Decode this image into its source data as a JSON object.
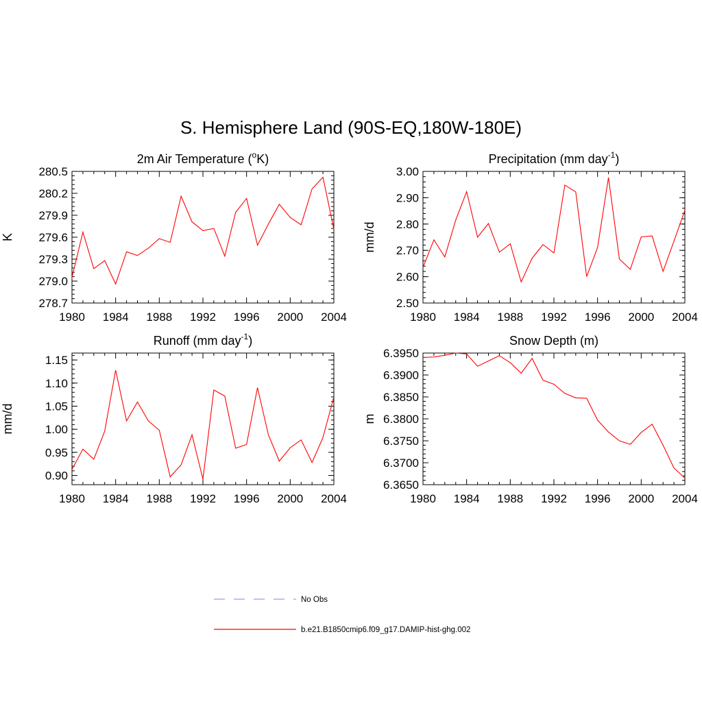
{
  "figure": {
    "title": "S. Hemisphere Land (90S-EQ,180W-180E)"
  },
  "legend": {
    "items": [
      {
        "label": "No Obs",
        "color": "#9999ff",
        "style": "dashed"
      },
      {
        "label": "b.e21.B1850cmip6.f09_g17.DAMIP-hist-ghg.002",
        "color": "#ff0000",
        "style": "solid"
      }
    ]
  },
  "chart_data": [
    {
      "type": "line",
      "title": "2m Air Temperature (°K)",
      "title_main": "2m Air Temperature (",
      "title_sup": "o",
      "title_tail": "K)",
      "ylabel": "K",
      "xlim": [
        1980,
        2004
      ],
      "ylim": [
        278.7,
        280.5
      ],
      "xticks": [
        "1980",
        "1984",
        "1988",
        "1992",
        "1996",
        "2000",
        "2004"
      ],
      "yticks": [
        "278.7",
        "279.0",
        "279.3",
        "279.6",
        "279.9",
        "280.2",
        "280.5"
      ],
      "series": [
        {
          "color": "#ff0000",
          "x": [
            1980,
            1981,
            1982,
            1983,
            1984,
            1985,
            1986,
            1987,
            1988,
            1989,
            1990,
            1991,
            1992,
            1993,
            1994,
            1995,
            1996,
            1997,
            1998,
            1999,
            2000,
            2001,
            2002,
            2003,
            2004
          ],
          "values": [
            279.05,
            279.67,
            279.17,
            279.28,
            278.96,
            279.4,
            279.35,
            279.45,
            279.58,
            279.53,
            280.16,
            279.81,
            279.69,
            279.72,
            279.34,
            279.94,
            280.13,
            279.49,
            279.78,
            280.05,
            279.87,
            279.77,
            280.26,
            280.42,
            279.71
          ]
        }
      ]
    },
    {
      "type": "line",
      "title": "Precipitation (mm day-1)",
      "title_main": "Precipitation (mm day",
      "title_sup": "-1",
      "title_tail": ")",
      "ylabel": "mm/d",
      "xlim": [
        1980,
        2004
      ],
      "ylim": [
        2.5,
        3.0
      ],
      "xticks": [
        "1980",
        "1984",
        "1988",
        "1992",
        "1996",
        "2000",
        "2004"
      ],
      "yticks": [
        "2.50",
        "2.60",
        "2.70",
        "2.80",
        "2.90",
        "3.00"
      ],
      "series": [
        {
          "color": "#ff0000",
          "x": [
            1980,
            1981,
            1982,
            1983,
            1984,
            1985,
            1986,
            1987,
            1988,
            1989,
            1990,
            1991,
            1992,
            1993,
            1994,
            1995,
            1996,
            1997,
            1998,
            1999,
            2000,
            2001,
            2002,
            2003,
            2004
          ],
          "values": [
            2.635,
            2.74,
            2.675,
            2.815,
            2.923,
            2.75,
            2.802,
            2.693,
            2.725,
            2.58,
            2.67,
            2.722,
            2.69,
            2.948,
            2.922,
            2.6,
            2.711,
            2.977,
            2.667,
            2.628,
            2.751,
            2.755,
            2.62,
            2.735,
            2.852
          ]
        }
      ]
    },
    {
      "type": "line",
      "title": "Runoff (mm day-1)",
      "title_main": "Runoff (mm day",
      "title_sup": "-1",
      "title_tail": ")",
      "ylabel": "mm/d",
      "xlim": [
        1980,
        2004
      ],
      "ylim": [
        0.88,
        1.165
      ],
      "xticks": [
        "1980",
        "1984",
        "1988",
        "1992",
        "1996",
        "2000",
        "2004"
      ],
      "yticks": [
        "0.90",
        "0.95",
        "1.00",
        "1.05",
        "1.10",
        "1.15"
      ],
      "series": [
        {
          "color": "#ff0000",
          "x": [
            1980,
            1981,
            1982,
            1983,
            1984,
            1985,
            1986,
            1987,
            1988,
            1989,
            1990,
            1991,
            1992,
            1993,
            1994,
            1995,
            1996,
            1997,
            1998,
            1999,
            2000,
            2001,
            2002,
            2003,
            2004
          ],
          "values": [
            0.913,
            0.957,
            0.935,
            0.996,
            1.128,
            1.018,
            1.059,
            1.018,
            0.998,
            0.897,
            0.923,
            0.988,
            0.892,
            1.085,
            1.072,
            0.959,
            0.967,
            1.09,
            0.988,
            0.931,
            0.96,
            0.977,
            0.928,
            0.982,
            1.07
          ]
        }
      ]
    },
    {
      "type": "line",
      "title": "Snow Depth (m)",
      "title_main": "Snow Depth (m)",
      "title_sup": "",
      "title_tail": "",
      "ylabel": "m",
      "xlim": [
        1980,
        2004
      ],
      "ylim": [
        6.365,
        6.395
      ],
      "xticks": [
        "1980",
        "1984",
        "1988",
        "1992",
        "1996",
        "2000",
        "2004"
      ],
      "yticks": [
        "6.3650",
        "6.3700",
        "6.3750",
        "6.3800",
        "6.3850",
        "6.3900",
        "6.3950"
      ],
      "series": [
        {
          "color": "#ff0000",
          "x": [
            1980,
            1981,
            1982,
            1983,
            1984,
            1985,
            1986,
            1987,
            1988,
            1989,
            1990,
            1991,
            1992,
            1993,
            1994,
            1995,
            1996,
            1997,
            1998,
            1999,
            2000,
            2001,
            2002,
            2003,
            2004
          ],
          "values": [
            6.394,
            6.3941,
            6.3945,
            6.395,
            6.3948,
            6.392,
            6.3932,
            6.3944,
            6.3928,
            6.3904,
            6.3938,
            6.3888,
            6.3879,
            6.3858,
            6.3848,
            6.3847,
            6.3797,
            6.377,
            6.375,
            6.3742,
            6.3769,
            6.3788,
            6.374,
            6.3688,
            6.3665
          ]
        }
      ]
    }
  ]
}
